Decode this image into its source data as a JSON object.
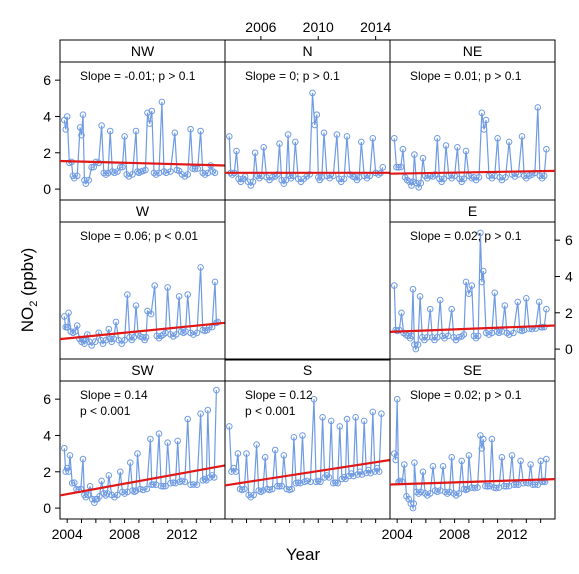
{
  "chart_data": {
    "type": "scatter",
    "xlabel": "Year",
    "ylabel_main": "NO",
    "ylabel_sub": "2",
    "ylabel_unit": " (ppbv)",
    "xlim": [
      2003.5,
      2015.0
    ],
    "ylim": [
      -0.6,
      7.0
    ],
    "x_ticks_bottom": [
      2004,
      2008,
      2012
    ],
    "x_ticks_top": [
      2006,
      2010,
      2014
    ],
    "y_ticks": [
      0,
      2,
      4,
      6
    ],
    "series_color": "#6f9be3",
    "trend_color": "#e01818",
    "panels": [
      {
        "id": "NW",
        "title": "NW",
        "row": 0,
        "col": 0,
        "slope_text": "Slope = -0.01;  p > 0.1",
        "slope_text2": "",
        "trend": [
          1.55,
          1.3
        ],
        "peaks": [
          [
            2003.8,
            3.8
          ],
          [
            2004.0,
            4.0
          ],
          [
            2004.9,
            3.4
          ],
          [
            2005.1,
            4.1
          ],
          [
            2006.4,
            3.5
          ],
          [
            2007.0,
            3.2
          ],
          [
            2008.0,
            2.9
          ],
          [
            2008.8,
            3.2
          ],
          [
            2009.6,
            4.2
          ],
          [
            2009.9,
            4.3
          ],
          [
            2010.6,
            4.8
          ],
          [
            2011.5,
            3.1
          ],
          [
            2012.6,
            3.3
          ],
          [
            2013.3,
            3.2
          ]
        ],
        "lows": [
          [
            2004.3,
            1.5
          ],
          [
            2004.5,
            0.6
          ],
          [
            2005.3,
            0.3
          ],
          [
            2005.7,
            1.2
          ],
          [
            2006.0,
            1.5
          ],
          [
            2006.7,
            0.8
          ],
          [
            2007.3,
            0.9
          ],
          [
            2007.7,
            1.2
          ],
          [
            2008.3,
            0.7
          ],
          [
            2009.0,
            0.9
          ],
          [
            2009.3,
            1.0
          ],
          [
            2010.2,
            0.8
          ],
          [
            2010.9,
            0.9
          ],
          [
            2011.8,
            1.0
          ],
          [
            2012.2,
            0.7
          ],
          [
            2012.9,
            1.1
          ],
          [
            2013.6,
            0.8
          ],
          [
            2014.0,
            1.3
          ],
          [
            2014.3,
            0.9
          ]
        ]
      },
      {
        "id": "N",
        "title": "N",
        "row": 0,
        "col": 1,
        "slope_text": "Slope = 0;  p > 0.1",
        "slope_text2": "",
        "trend": [
          0.9,
          0.9
        ],
        "peaks": [
          [
            2003.8,
            2.9
          ],
          [
            2004.3,
            2.1
          ],
          [
            2005.6,
            2.0
          ],
          [
            2006.2,
            2.3
          ],
          [
            2007.3,
            2.5
          ],
          [
            2007.9,
            3.0
          ],
          [
            2008.4,
            2.6
          ],
          [
            2009.6,
            5.3
          ],
          [
            2009.9,
            4.1
          ],
          [
            2010.4,
            3.1
          ],
          [
            2011.3,
            3.0
          ],
          [
            2012.0,
            2.9
          ],
          [
            2013.0,
            2.6
          ],
          [
            2013.8,
            2.8
          ]
        ],
        "lows": [
          [
            2004.0,
            0.8
          ],
          [
            2004.6,
            0.4
          ],
          [
            2004.9,
            0.7
          ],
          [
            2005.3,
            0.2
          ],
          [
            2005.9,
            0.6
          ],
          [
            2006.6,
            0.5
          ],
          [
            2007.0,
            0.7
          ],
          [
            2007.6,
            0.3
          ],
          [
            2008.1,
            0.6
          ],
          [
            2008.8,
            0.4
          ],
          [
            2009.2,
            0.7
          ],
          [
            2010.1,
            0.5
          ],
          [
            2010.8,
            0.6
          ],
          [
            2011.6,
            0.4
          ],
          [
            2012.4,
            0.7
          ],
          [
            2012.7,
            0.5
          ],
          [
            2013.4,
            0.6
          ],
          [
            2014.2,
            0.8
          ],
          [
            2014.5,
            1.2
          ]
        ]
      },
      {
        "id": "NE",
        "title": "NE",
        "row": 0,
        "col": 2,
        "slope_text": "Slope = 0.01;  p > 0.1",
        "slope_text2": "",
        "trend": [
          0.85,
          1.0
        ],
        "peaks": [
          [
            2003.8,
            2.8
          ],
          [
            2004.4,
            2.2
          ],
          [
            2005.2,
            1.9
          ],
          [
            2005.8,
            1.7
          ],
          [
            2006.8,
            2.8
          ],
          [
            2007.4,
            2.4
          ],
          [
            2008.2,
            2.3
          ],
          [
            2008.8,
            2.1
          ],
          [
            2009.9,
            4.2
          ],
          [
            2010.2,
            3.8
          ],
          [
            2011.0,
            2.8
          ],
          [
            2011.8,
            2.6
          ],
          [
            2012.7,
            2.9
          ],
          [
            2013.8,
            4.5
          ],
          [
            2014.4,
            2.2
          ]
        ],
        "lows": [
          [
            2004.1,
            1.2
          ],
          [
            2004.7,
            0.5
          ],
          [
            2005.0,
            0.2
          ],
          [
            2005.5,
            0.1
          ],
          [
            2006.1,
            0.6
          ],
          [
            2006.5,
            0.7
          ],
          [
            2007.1,
            0.4
          ],
          [
            2007.8,
            0.6
          ],
          [
            2008.5,
            0.4
          ],
          [
            2009.2,
            0.6
          ],
          [
            2009.5,
            0.5
          ],
          [
            2010.6,
            0.6
          ],
          [
            2011.3,
            0.5
          ],
          [
            2012.2,
            0.7
          ],
          [
            2013.0,
            0.6
          ],
          [
            2013.4,
            0.8
          ],
          [
            2014.1,
            0.6
          ]
        ]
      },
      {
        "id": "W",
        "title": "W",
        "row": 1,
        "col": 0,
        "slope_text": "Slope = 0.06;  p < 0.01",
        "slope_text2": "",
        "trend": [
          0.55,
          1.45
        ],
        "peaks": [
          [
            2003.8,
            1.8
          ],
          [
            2004.1,
            2.0
          ],
          [
            2004.7,
            1.3
          ],
          [
            2005.4,
            0.8
          ],
          [
            2006.2,
            0.9
          ],
          [
            2006.9,
            1.1
          ],
          [
            2007.4,
            1.5
          ],
          [
            2008.2,
            3.0
          ],
          [
            2008.8,
            2.4
          ],
          [
            2009.6,
            2.1
          ],
          [
            2010.1,
            3.5
          ],
          [
            2011.0,
            3.4
          ],
          [
            2011.8,
            2.9
          ],
          [
            2012.4,
            3.0
          ],
          [
            2013.3,
            4.5
          ],
          [
            2014.3,
            3.7
          ]
        ],
        "lows": [
          [
            2004.0,
            1.2
          ],
          [
            2004.4,
            0.9
          ],
          [
            2005.0,
            0.4
          ],
          [
            2005.2,
            0.3
          ],
          [
            2005.7,
            0.2
          ],
          [
            2006.5,
            0.3
          ],
          [
            2007.1,
            0.4
          ],
          [
            2007.8,
            0.3
          ],
          [
            2008.5,
            0.5
          ],
          [
            2009.1,
            0.7
          ],
          [
            2009.4,
            0.5
          ],
          [
            2010.4,
            0.6
          ],
          [
            2010.7,
            0.8
          ],
          [
            2011.4,
            0.7
          ],
          [
            2012.1,
            0.9
          ],
          [
            2012.8,
            0.8
          ],
          [
            2013.6,
            1.0
          ],
          [
            2013.9,
            1.2
          ],
          [
            2014.5,
            1.5
          ]
        ]
      },
      {
        "id": "E",
        "title": "E",
        "row": 1,
        "col": 2,
        "slope_text": "Slope = 0.02;  p > 0.1",
        "slope_text2": "",
        "trend": [
          0.95,
          1.3
        ],
        "peaks": [
          [
            2003.8,
            3.5
          ],
          [
            2004.3,
            2.0
          ],
          [
            2005.1,
            3.3
          ],
          [
            2005.6,
            2.9
          ],
          [
            2006.3,
            2.2
          ],
          [
            2007.0,
            2.7
          ],
          [
            2007.8,
            2.2
          ],
          [
            2008.8,
            3.7
          ],
          [
            2009.2,
            3.5
          ],
          [
            2009.8,
            6.4
          ],
          [
            2010.0,
            4.3
          ],
          [
            2010.8,
            3.1
          ],
          [
            2011.5,
            2.4
          ],
          [
            2012.4,
            2.6
          ],
          [
            2013.0,
            2.8
          ],
          [
            2013.9,
            2.6
          ],
          [
            2014.4,
            2.2
          ]
        ],
        "lows": [
          [
            2004.0,
            1.0
          ],
          [
            2004.6,
            0.8
          ],
          [
            2004.9,
            0.6
          ],
          [
            2005.3,
            0.0
          ],
          [
            2005.9,
            0.5
          ],
          [
            2006.6,
            0.5
          ],
          [
            2007.3,
            0.6
          ],
          [
            2008.1,
            0.5
          ],
          [
            2008.5,
            0.7
          ],
          [
            2009.5,
            0.6
          ],
          [
            2010.4,
            0.8
          ],
          [
            2011.1,
            0.9
          ],
          [
            2011.8,
            0.8
          ],
          [
            2012.7,
            1.0
          ],
          [
            2013.4,
            1.1
          ],
          [
            2014.1,
            1.2
          ]
        ]
      },
      {
        "id": "SW",
        "title": "SW",
        "row": 2,
        "col": 0,
        "slope_text": "Slope = 0.14",
        "slope_text2": "p < 0.001",
        "trend": [
          0.7,
          2.35
        ],
        "peaks": [
          [
            2003.8,
            3.3
          ],
          [
            2004.2,
            2.9
          ],
          [
            2005.1,
            2.7
          ],
          [
            2005.6,
            1.2
          ],
          [
            2006.4,
            1.5
          ],
          [
            2006.9,
            1.8
          ],
          [
            2007.7,
            2.0
          ],
          [
            2008.4,
            2.5
          ],
          [
            2008.9,
            3.0
          ],
          [
            2009.8,
            3.8
          ],
          [
            2010.4,
            4.1
          ],
          [
            2011.0,
            3.6
          ],
          [
            2011.7,
            3.7
          ],
          [
            2012.4,
            4.9
          ],
          [
            2013.3,
            5.2
          ],
          [
            2013.8,
            5.4
          ],
          [
            2014.4,
            6.5
          ]
        ],
        "lows": [
          [
            2004.0,
            2.2
          ],
          [
            2004.5,
            1.4
          ],
          [
            2004.8,
            1.0
          ],
          [
            2005.3,
            0.6
          ],
          [
            2005.9,
            0.3
          ],
          [
            2006.1,
            0.5
          ],
          [
            2006.7,
            0.7
          ],
          [
            2007.3,
            0.6
          ],
          [
            2008.0,
            0.8
          ],
          [
            2008.7,
            0.9
          ],
          [
            2009.3,
            1.0
          ],
          [
            2010.0,
            1.3
          ],
          [
            2010.7,
            1.2
          ],
          [
            2011.4,
            1.4
          ],
          [
            2012.0,
            1.5
          ],
          [
            2012.8,
            1.3
          ],
          [
            2013.6,
            1.6
          ],
          [
            2014.1,
            1.8
          ]
        ]
      },
      {
        "id": "S",
        "title": "S",
        "row": 2,
        "col": 1,
        "slope_text": "Slope = 0.12",
        "slope_text2": "p < 0.001",
        "trend": [
          1.25,
          2.65
        ],
        "peaks": [
          [
            2003.8,
            4.5
          ],
          [
            2004.4,
            3.0
          ],
          [
            2005.0,
            3.0
          ],
          [
            2005.7,
            3.5
          ],
          [
            2006.3,
            2.8
          ],
          [
            2007.0,
            3.2
          ],
          [
            2007.6,
            2.9
          ],
          [
            2008.3,
            3.9
          ],
          [
            2008.9,
            4.0
          ],
          [
            2009.7,
            6.0
          ],
          [
            2010.3,
            5.0
          ],
          [
            2010.9,
            4.8
          ],
          [
            2011.5,
            4.5
          ],
          [
            2012.0,
            4.9
          ],
          [
            2012.6,
            5.0
          ],
          [
            2013.2,
            4.8
          ],
          [
            2013.8,
            5.3
          ],
          [
            2014.4,
            5.2
          ]
        ],
        "lows": [
          [
            2004.1,
            2.2
          ],
          [
            2004.7,
            1.0
          ],
          [
            2005.3,
            0.6
          ],
          [
            2006.0,
            0.9
          ],
          [
            2006.6,
            1.0
          ],
          [
            2007.3,
            1.2
          ],
          [
            2008.0,
            1.0
          ],
          [
            2008.6,
            1.4
          ],
          [
            2009.2,
            1.5
          ],
          [
            2010.0,
            1.5
          ],
          [
            2010.6,
            1.8
          ],
          [
            2011.2,
            1.4
          ],
          [
            2011.8,
            1.7
          ],
          [
            2012.3,
            1.9
          ],
          [
            2012.9,
            2.0
          ],
          [
            2013.5,
            2.1
          ],
          [
            2014.1,
            2.2
          ]
        ]
      },
      {
        "id": "SE",
        "title": "SE",
        "row": 2,
        "col": 2,
        "slope_text": "Slope = 0.02;  p > 0.1",
        "slope_text2": "",
        "trend": [
          1.3,
          1.6
        ],
        "peaks": [
          [
            2003.8,
            3.0
          ],
          [
            2004.0,
            6.0
          ],
          [
            2004.5,
            2.4
          ],
          [
            2005.2,
            2.5
          ],
          [
            2005.8,
            2.0
          ],
          [
            2006.5,
            2.3
          ],
          [
            2007.2,
            2.3
          ],
          [
            2007.8,
            2.8
          ],
          [
            2008.5,
            2.6
          ],
          [
            2009.0,
            2.9
          ],
          [
            2009.8,
            4.0
          ],
          [
            2010.0,
            3.8
          ],
          [
            2010.6,
            3.8
          ],
          [
            2011.3,
            2.8
          ],
          [
            2012.0,
            2.9
          ],
          [
            2012.6,
            2.6
          ],
          [
            2013.3,
            2.4
          ],
          [
            2014.0,
            2.6
          ],
          [
            2014.4,
            2.7
          ]
        ],
        "lows": [
          [
            2004.2,
            1.5
          ],
          [
            2004.8,
            0.5
          ],
          [
            2005.1,
            0.0
          ],
          [
            2005.5,
            0.8
          ],
          [
            2006.1,
            0.7
          ],
          [
            2006.8,
            0.9
          ],
          [
            2007.5,
            0.8
          ],
          [
            2008.1,
            0.7
          ],
          [
            2008.8,
            1.0
          ],
          [
            2009.4,
            1.1
          ],
          [
            2010.3,
            1.2
          ],
          [
            2010.9,
            1.1
          ],
          [
            2011.6,
            1.2
          ],
          [
            2012.3,
            1.3
          ],
          [
            2013.0,
            1.4
          ],
          [
            2013.6,
            1.3
          ],
          [
            2014.2,
            1.5
          ]
        ]
      }
    ]
  }
}
